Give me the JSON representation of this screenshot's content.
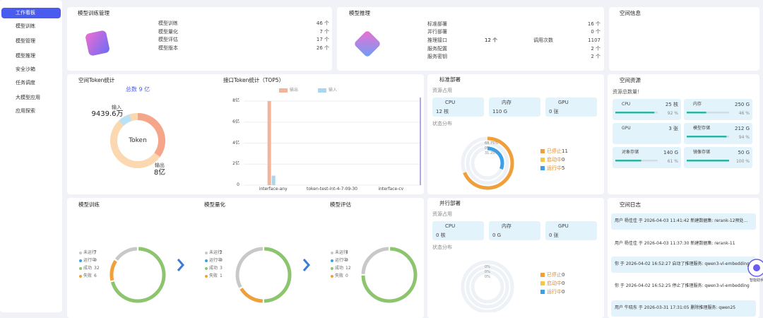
{
  "sidebar": {
    "items": [
      "工作看板",
      "模型训练",
      "模型管理",
      "模型推理",
      "安全沙箱",
      "任务调度",
      "大模型应用",
      "应用探索"
    ]
  },
  "training_mgmt": {
    "title": "模型训练管理",
    "rows": [
      [
        "模型训练",
        "46 个"
      ],
      [
        "模型量化",
        "7 个"
      ],
      [
        "模型评估",
        "17 个"
      ],
      [
        "模型版本",
        "26 个"
      ]
    ]
  },
  "inference": {
    "title": "模型推理",
    "rows": [
      [
        "标准部署",
        "16 个"
      ],
      [
        "并行部署",
        "0 个"
      ],
      [
        "推理接口",
        "12 个",
        "调用次数",
        "1107"
      ],
      [
        "服务配置",
        "2 个"
      ],
      [
        "服务密钥",
        "2 个"
      ]
    ]
  },
  "space_info": {
    "title": "空间信息"
  },
  "token_stats": {
    "title": "空间Token统计",
    "total": "总数 9 亿",
    "center": "Token",
    "input_label": "输入",
    "input_value": "9439.6万",
    "output_label": "输出",
    "output_value": "8亿"
  },
  "api_token": {
    "title": "接口Token统计（TOP5）",
    "ylim": [
      0,
      8
    ],
    "yticks": [
      0,
      {
        "value": 2,
        "label": "2亿"
      },
      {
        "value": 4,
        "label": "4亿"
      },
      {
        "value": 6,
        "label": "6亿"
      },
      {
        "value": 8,
        "label": "8亿"
      }
    ],
    "categories": [
      "interface-any",
      "token-test-int-4-7-09-30",
      "interface-cv"
    ],
    "series": [
      {
        "name": "输出",
        "color": "#f4b49a",
        "values": [
          8,
          0,
          0
        ]
      },
      {
        "name": "输入",
        "color": "#a8d8f0",
        "values": [
          0.9,
          0,
          0
        ]
      }
    ]
  },
  "standard_deploy": {
    "title": "标准部署",
    "resource_label": "资源占用",
    "resources": [
      [
        "CPU",
        "12 核"
      ],
      [
        "内存",
        "110 G"
      ],
      [
        "GPU",
        "0 张"
      ]
    ],
    "status_label": "状态分布",
    "ring_labels": [
      "68.75%",
      "0%",
      "31.25%"
    ],
    "status": [
      {
        "name": "已停止",
        "value": 11,
        "color": "#f0a03a"
      },
      {
        "name": "启动中",
        "value": 0,
        "color": "#f5c842"
      },
      {
        "name": "运行中",
        "value": 5,
        "color": "#3aa0e8"
      }
    ]
  },
  "parallel_deploy": {
    "title": "并行部署",
    "resource_label": "资源占用",
    "resources": [
      [
        "CPU",
        "0 核"
      ],
      [
        "内存",
        "0 G"
      ],
      [
        "GPU",
        "0 张"
      ]
    ],
    "status_label": "状态分布",
    "ring_labels": [
      "0%",
      "0%",
      "0%"
    ],
    "status": [
      {
        "name": "已停止",
        "value": 0,
        "color": "#f0a03a"
      },
      {
        "name": "启动中",
        "value": 0,
        "color": "#f5c842"
      },
      {
        "name": "运行中",
        "value": 0,
        "color": "#3aa0e8"
      }
    ]
  },
  "space_resources": {
    "title": "空间资源",
    "subtitle": "资源总数量！",
    "items": [
      {
        "name": "CPU",
        "value": "25 核",
        "pct": 92,
        "pct_label": "92 %"
      },
      {
        "name": "内存",
        "value": "250 G",
        "pct": 46,
        "pct_label": "46 %"
      },
      {
        "name": "GPU",
        "value": "3 张"
      },
      {
        "name": "模型存储",
        "value": "212 G",
        "pct": 94,
        "pct_label": "94 %"
      },
      {
        "name": "对象存储",
        "value": "140 G",
        "pct": 61,
        "pct_label": "61 %"
      },
      {
        "name": "镜像存储",
        "value": "50 G",
        "pct": 100,
        "pct_label": "100 %"
      }
    ]
  },
  "task_status": [
    {
      "title": "模型训练",
      "legend": [
        {
          "name": "未运行",
          "value": 7,
          "color": "#c8c8c8"
        },
        {
          "name": "运行中",
          "value": 0,
          "color": "#3aa0e8"
        },
        {
          "name": "成功",
          "value": 32,
          "color": "#8cc56e"
        },
        {
          "name": "失败",
          "value": 6,
          "color": "#f0a03a"
        }
      ]
    },
    {
      "title": "模型量化",
      "legend": [
        {
          "name": "未运行",
          "value": 2,
          "color": "#c8c8c8"
        },
        {
          "name": "运行中",
          "value": 0,
          "color": "#3aa0e8"
        },
        {
          "name": "成功",
          "value": 3,
          "color": "#8cc56e"
        },
        {
          "name": "失败",
          "value": 1,
          "color": "#f0a03a"
        }
      ]
    },
    {
      "title": "模型评估",
      "legend": [
        {
          "name": "未运行",
          "value": 4,
          "color": "#c8c8c8"
        },
        {
          "name": "运行中",
          "value": 0,
          "color": "#3aa0e8"
        },
        {
          "name": "成功",
          "value": 12,
          "color": "#8cc56e"
        },
        {
          "name": "失败",
          "value": 0,
          "color": "#f0a03a"
        }
      ]
    }
  ],
  "space_log": {
    "title": "空间日志",
    "entries": [
      "用户 杨佳佳 于 2026-04-03 11:41:42 新建数据集: rerank-12预处...",
      "用户 杨佳佳 于 2026-04-03 11:37:30 新建数据集: rerank-11",
      "你 于 2026-04-02 16:52:27 启动了推理服务: qwen3-vl-embedding",
      "你 于 2026-04-02 16:52:25 停止了推理服务: qwen3-vl-embedding",
      "用户 牛晓东 于 2026-03-31 17:31:05 删除推理服务: qwen25"
    ]
  },
  "assistant": "智能助手"
}
